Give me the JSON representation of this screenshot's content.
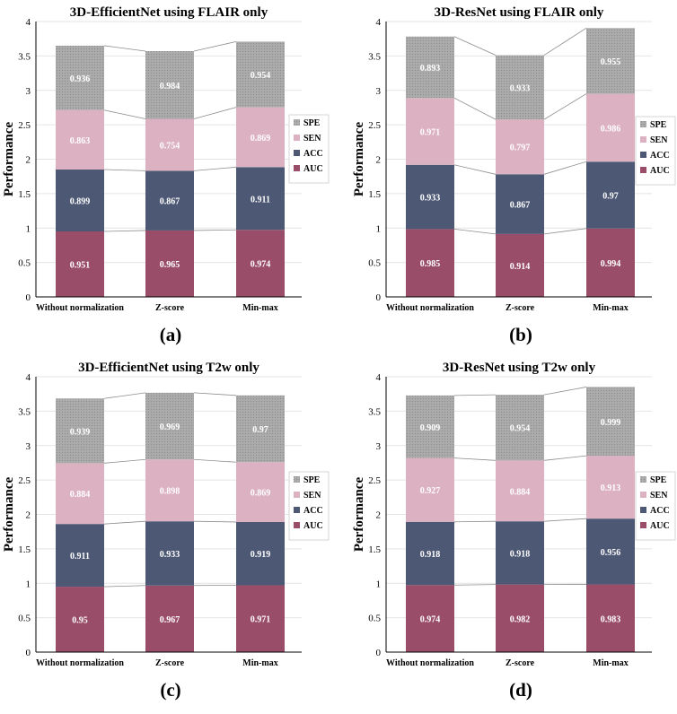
{
  "colors": {
    "AUC": "#9a4d68",
    "ACC": "#4d5875",
    "SEN": "#dcb1c2",
    "SPE": "#a3a3a3",
    "label": "#ffffff",
    "grid": "#e4e4e4",
    "connector": "#8c8c8c"
  },
  "chart_data": [
    {
      "panel": "(a)",
      "type": "bar",
      "stacked": true,
      "title": "3D-EfficientNet using FLAIR only",
      "ylabel": "Performance",
      "xlabel": "",
      "ylim": [
        0,
        4
      ],
      "yticks": [
        "0",
        "0.5",
        "1",
        "1.5",
        "2",
        "2.5",
        "3",
        "3.5",
        "4"
      ],
      "categories": [
        "Without normalization",
        "Z-score",
        "Min-max"
      ],
      "series": [
        {
          "name": "AUC",
          "values": [
            0.951,
            0.965,
            0.974
          ],
          "labels": [
            "0.951",
            "0.965",
            "0.974"
          ]
        },
        {
          "name": "ACC",
          "values": [
            0.899,
            0.867,
            0.911
          ],
          "labels": [
            "0.899",
            "0.867",
            "0.911"
          ]
        },
        {
          "name": "SEN",
          "values": [
            0.863,
            0.754,
            0.869
          ],
          "labels": [
            "0.863",
            "0.754",
            "0.869"
          ]
        },
        {
          "name": "SPE",
          "values": [
            0.936,
            0.984,
            0.954
          ],
          "labels": [
            "0.936",
            "0.984",
            "0.954"
          ]
        }
      ],
      "legend": [
        "SPE",
        "SEN",
        "ACC",
        "AUC"
      ],
      "legend_position": "right"
    },
    {
      "panel": "(b)",
      "type": "bar",
      "stacked": true,
      "title": "3D-ResNet using FLAIR only",
      "ylabel": "Performance",
      "xlabel": "",
      "ylim": [
        0,
        4
      ],
      "yticks": [
        "0",
        "0.5",
        "1",
        "1.5",
        "2",
        "2.5",
        "3",
        "3.5",
        "4"
      ],
      "categories": [
        "Without normalization",
        "Z-score",
        "Min-max"
      ],
      "series": [
        {
          "name": "AUC",
          "values": [
            0.985,
            0.914,
            0.994
          ],
          "labels": [
            "0.985",
            "0.914",
            "0.994"
          ]
        },
        {
          "name": "ACC",
          "values": [
            0.933,
            0.867,
            0.97
          ],
          "labels": [
            "0.933",
            "0.867",
            "0.97"
          ]
        },
        {
          "name": "SEN",
          "values": [
            0.971,
            0.797,
            0.986
          ],
          "labels": [
            "0.971",
            "0.797",
            "0.986"
          ]
        },
        {
          "name": "SPE",
          "values": [
            0.893,
            0.933,
            0.955
          ],
          "labels": [
            "0.893",
            "0.933",
            "0.955"
          ]
        }
      ],
      "legend": [
        "SPE",
        "SEN",
        "ACC",
        "AUC"
      ],
      "legend_position": "right"
    },
    {
      "panel": "(c)",
      "type": "bar",
      "stacked": true,
      "title": "3D-EfficientNet using T2w only",
      "ylabel": "Performance",
      "xlabel": "",
      "ylim": [
        0,
        4
      ],
      "yticks": [
        "0",
        "0.5",
        "1",
        "1.5",
        "2",
        "2.5",
        "3",
        "3.5",
        "4"
      ],
      "categories": [
        "Without normalization",
        "Z-score",
        "Min-max"
      ],
      "series": [
        {
          "name": "AUC",
          "values": [
            0.95,
            0.967,
            0.971
          ],
          "labels": [
            "0.95",
            "0.967",
            "0.971"
          ]
        },
        {
          "name": "ACC",
          "values": [
            0.911,
            0.933,
            0.919
          ],
          "labels": [
            "0.911",
            "0.933",
            "0.919"
          ]
        },
        {
          "name": "SEN",
          "values": [
            0.884,
            0.898,
            0.869
          ],
          "labels": [
            "0.884",
            "0.898",
            "0.869"
          ]
        },
        {
          "name": "SPE",
          "values": [
            0.939,
            0.969,
            0.97
          ],
          "labels": [
            "0.939",
            "0.969",
            "0.97"
          ]
        }
      ],
      "legend": [
        "SPE",
        "SEN",
        "ACC",
        "AUC"
      ],
      "legend_position": "right"
    },
    {
      "panel": "(d)",
      "type": "bar",
      "stacked": true,
      "title": "3D-ResNet using T2w only",
      "ylabel": "Performance",
      "xlabel": "",
      "ylim": [
        0,
        4
      ],
      "yticks": [
        "0",
        "0.5",
        "1",
        "1.5",
        "2",
        "2.5",
        "3",
        "3.5",
        "4"
      ],
      "categories": [
        "Without normalization",
        "Z-score",
        "Min-max"
      ],
      "series": [
        {
          "name": "AUC",
          "values": [
            0.974,
            0.982,
            0.983
          ],
          "labels": [
            "0.974",
            "0.982",
            "0.983"
          ]
        },
        {
          "name": "ACC",
          "values": [
            0.918,
            0.918,
            0.956
          ],
          "labels": [
            "0.918",
            "0.918",
            "0.956"
          ]
        },
        {
          "name": "SEN",
          "values": [
            0.927,
            0.884,
            0.913
          ],
          "labels": [
            "0.927",
            "0.884",
            "0.913"
          ]
        },
        {
          "name": "SPE",
          "values": [
            0.909,
            0.954,
            0.999
          ],
          "labels": [
            "0.909",
            "0.954",
            "0.999"
          ]
        }
      ],
      "legend": [
        "SPE",
        "SEN",
        "ACC",
        "AUC"
      ],
      "legend_position": "right"
    }
  ]
}
